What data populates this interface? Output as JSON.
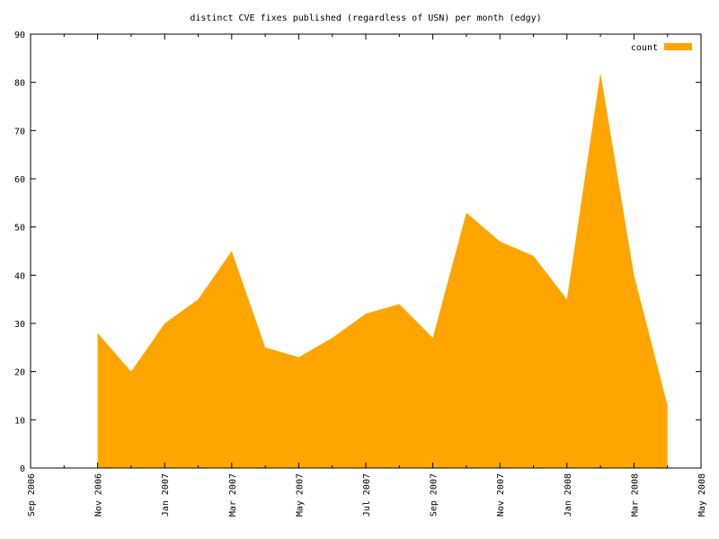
{
  "chart_data": {
    "type": "area",
    "title": "distinct CVE fixes published (regardless of USN) per month (edgy)",
    "xlabel": "",
    "ylabel": "",
    "xlim": [
      "2006-09-01",
      "2008-05-01"
    ],
    "ylim": [
      0,
      90
    ],
    "x_tick_labels": [
      "Sep 2006",
      "Nov 2006",
      "Jan 2007",
      "Mar 2007",
      "May 2007",
      "Jul 2007",
      "Sep 2007",
      "Nov 2007",
      "Jan 2008",
      "Mar 2008",
      "May 2008"
    ],
    "y_tick_labels": [
      "0",
      "10",
      "20",
      "30",
      "40",
      "50",
      "60",
      "70",
      "80",
      "90"
    ],
    "grid": false,
    "legend_placement": "top-right",
    "colors": {
      "fill": "#ffa500"
    },
    "series": [
      {
        "name": "count",
        "x": [
          "2006-11",
          "2006-12",
          "2007-01",
          "2007-02",
          "2007-03",
          "2007-04",
          "2007-05",
          "2007-06",
          "2007-07",
          "2007-08",
          "2007-09",
          "2007-10",
          "2007-11",
          "2007-12",
          "2008-01",
          "2008-02",
          "2008-03",
          "2008-04"
        ],
        "values": [
          28,
          20,
          30,
          35,
          45,
          25,
          23,
          27,
          32,
          34,
          27,
          53,
          47,
          44,
          35,
          82,
          40,
          13
        ]
      }
    ]
  }
}
